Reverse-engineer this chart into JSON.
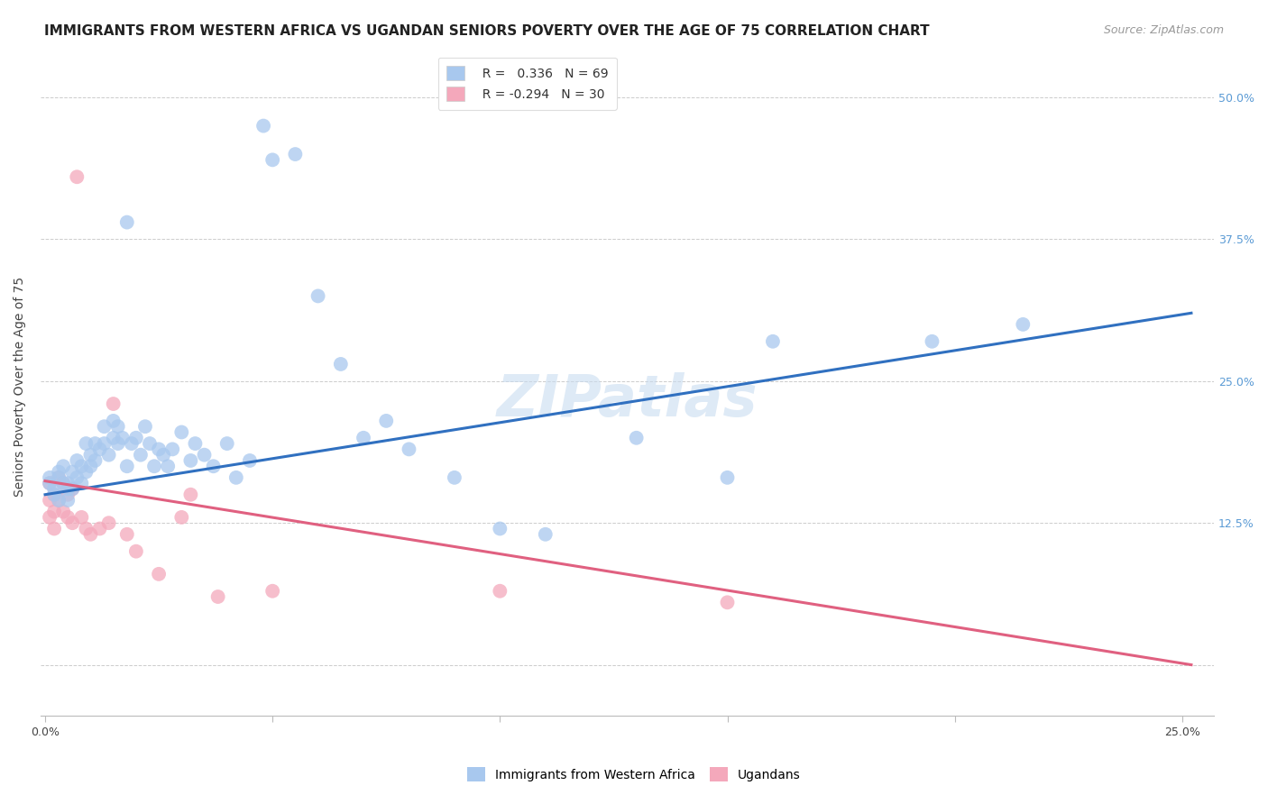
{
  "title": "IMMIGRANTS FROM WESTERN AFRICA VS UGANDAN SENIORS POVERTY OVER THE AGE OF 75 CORRELATION CHART",
  "source": "Source: ZipAtlas.com",
  "ylabel": "Seniors Poverty Over the Age of 75",
  "x_lim": [
    -0.001,
    0.257
  ],
  "y_lim": [
    -0.045,
    0.535
  ],
  "blue_color": "#A8C8EE",
  "pink_color": "#F4A8BB",
  "blue_line_color": "#3070C0",
  "pink_line_color": "#E06080",
  "watermark": "ZIPatlas",
  "blue_scatter_x": [
    0.001,
    0.001,
    0.002,
    0.002,
    0.003,
    0.003,
    0.003,
    0.004,
    0.004,
    0.005,
    0.005,
    0.005,
    0.006,
    0.006,
    0.007,
    0.007,
    0.008,
    0.008,
    0.009,
    0.009,
    0.01,
    0.01,
    0.011,
    0.011,
    0.012,
    0.013,
    0.013,
    0.014,
    0.015,
    0.015,
    0.016,
    0.016,
    0.017,
    0.018,
    0.018,
    0.019,
    0.02,
    0.021,
    0.022,
    0.023,
    0.024,
    0.025,
    0.026,
    0.027,
    0.028,
    0.03,
    0.032,
    0.033,
    0.035,
    0.037,
    0.04,
    0.042,
    0.045,
    0.048,
    0.05,
    0.055,
    0.06,
    0.065,
    0.07,
    0.075,
    0.08,
    0.09,
    0.1,
    0.11,
    0.13,
    0.15,
    0.16,
    0.195,
    0.215
  ],
  "blue_scatter_y": [
    0.165,
    0.16,
    0.15,
    0.155,
    0.145,
    0.17,
    0.165,
    0.16,
    0.175,
    0.155,
    0.145,
    0.16,
    0.17,
    0.155,
    0.18,
    0.165,
    0.175,
    0.16,
    0.195,
    0.17,
    0.185,
    0.175,
    0.195,
    0.18,
    0.19,
    0.21,
    0.195,
    0.185,
    0.2,
    0.215,
    0.21,
    0.195,
    0.2,
    0.39,
    0.175,
    0.195,
    0.2,
    0.185,
    0.21,
    0.195,
    0.175,
    0.19,
    0.185,
    0.175,
    0.19,
    0.205,
    0.18,
    0.195,
    0.185,
    0.175,
    0.195,
    0.165,
    0.18,
    0.475,
    0.445,
    0.45,
    0.325,
    0.265,
    0.2,
    0.215,
    0.19,
    0.165,
    0.12,
    0.115,
    0.2,
    0.165,
    0.285,
    0.285,
    0.3
  ],
  "pink_scatter_x": [
    0.001,
    0.001,
    0.001,
    0.002,
    0.002,
    0.002,
    0.003,
    0.003,
    0.004,
    0.004,
    0.005,
    0.005,
    0.006,
    0.006,
    0.007,
    0.008,
    0.009,
    0.01,
    0.012,
    0.014,
    0.015,
    0.018,
    0.02,
    0.025,
    0.03,
    0.032,
    0.038,
    0.05,
    0.1,
    0.15
  ],
  "pink_scatter_y": [
    0.16,
    0.145,
    0.13,
    0.15,
    0.135,
    0.12,
    0.165,
    0.145,
    0.16,
    0.135,
    0.15,
    0.13,
    0.155,
    0.125,
    0.43,
    0.13,
    0.12,
    0.115,
    0.12,
    0.125,
    0.23,
    0.115,
    0.1,
    0.08,
    0.13,
    0.15,
    0.06,
    0.065,
    0.065,
    0.055
  ],
  "blue_line_x": [
    0.0,
    0.252
  ],
  "blue_line_y": [
    0.15,
    0.31
  ],
  "pink_line_x": [
    0.0,
    0.252
  ],
  "pink_line_y": [
    0.162,
    0.0
  ],
  "grid_color": "#CCCCCC",
  "background_color": "#FFFFFF",
  "title_fontsize": 11,
  "source_fontsize": 9,
  "axis_label_fontsize": 10,
  "tick_fontsize": 9,
  "legend_fontsize": 10,
  "watermark_fontsize": 46,
  "watermark_color": "#C8DCF0",
  "watermark_alpha": 0.6,
  "scatter_size": 130,
  "scatter_alpha": 0.75
}
